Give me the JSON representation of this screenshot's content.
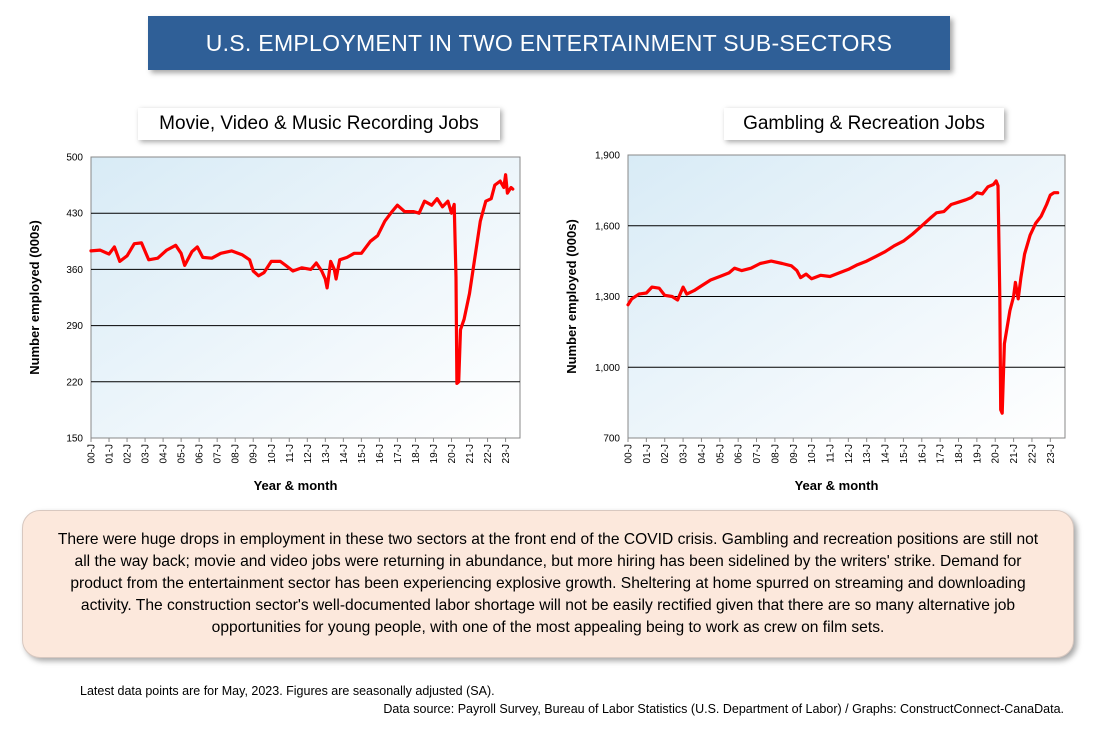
{
  "header": {
    "title": "U.S. EMPLOYMENT IN TWO ENTERTAINMENT SUB-SECTORS"
  },
  "note": {
    "text": "There were huge drops in employment in these two sectors at the front end of the COVID crisis. Gambling and recreation positions are still not all the way back; movie and video jobs were returning in abundance, but more hiring has been sidelined by the writers' strike. Demand for product from the entertainment sector has been experiencing explosive growth. Sheltering at home spurred on streaming and downloading activity. The construction sector's well-documented labor shortage will not be easily rectified given that there are so many alternative job opportunities for young people, with one of the most appealing being to work as crew on film sets."
  },
  "footer": {
    "line1": "Latest data points are for May, 2023. Figures are seasonally adjusted (SA).",
    "line2": "Data source: Payroll Survey, Bureau of Labor Statistics (U.S. Department of Labor) / Graphs: ConstructConnect-CanaData."
  },
  "colors": {
    "banner": "#2f5f97",
    "line": "#ff0000",
    "note_bg": "#fce8dc"
  },
  "chart_data": [
    {
      "type": "line",
      "title": "Movie, Video & Music Recording Jobs",
      "xlabel": "Year & month",
      "ylabel": "Number employed (000s)",
      "ylim": [
        150,
        500
      ],
      "yticks": [
        "150",
        "220",
        "290",
        "360",
        "430",
        "500"
      ],
      "ytick_values": [
        150,
        220,
        290,
        360,
        430,
        500
      ],
      "xlim": [
        2000.0,
        2023.8
      ],
      "xticks": [
        "00-J",
        "01-J",
        "02-J",
        "03-J",
        "04-J",
        "05-J",
        "06-J",
        "07-J",
        "08-J",
        "09-J",
        "10-J",
        "11-J",
        "12-J",
        "13-J",
        "14-J",
        "15-J",
        "16-J",
        "17-J",
        "18-J",
        "19-J",
        "20-J",
        "21-J",
        "22-J",
        "23-J"
      ],
      "grid": true,
      "series": [
        {
          "color": "#ff0000",
          "points": [
            [
              2000.0,
              383
            ],
            [
              2000.5,
              384
            ],
            [
              2001.0,
              379
            ],
            [
              2001.3,
              388
            ],
            [
              2001.6,
              370
            ],
            [
              2002.0,
              377
            ],
            [
              2002.4,
              392
            ],
            [
              2002.8,
              393
            ],
            [
              2003.2,
              372
            ],
            [
              2003.7,
              374
            ],
            [
              2004.2,
              384
            ],
            [
              2004.7,
              390
            ],
            [
              2005.0,
              380
            ],
            [
              2005.2,
              365
            ],
            [
              2005.6,
              382
            ],
            [
              2005.9,
              388
            ],
            [
              2006.2,
              375
            ],
            [
              2006.7,
              374
            ],
            [
              2007.2,
              380
            ],
            [
              2007.8,
              383
            ],
            [
              2008.4,
              378
            ],
            [
              2008.8,
              372
            ],
            [
              2009.0,
              358
            ],
            [
              2009.3,
              352
            ],
            [
              2009.6,
              356
            ],
            [
              2010.0,
              370
            ],
            [
              2010.5,
              370
            ],
            [
              2010.8,
              365
            ],
            [
              2011.2,
              358
            ],
            [
              2011.7,
              362
            ],
            [
              2012.2,
              360
            ],
            [
              2012.5,
              368
            ],
            [
              2012.8,
              358
            ],
            [
              2013.0,
              348
            ],
            [
              2013.1,
              337
            ],
            [
              2013.3,
              370
            ],
            [
              2013.5,
              360
            ],
            [
              2013.6,
              348
            ],
            [
              2013.8,
              372
            ],
            [
              2014.2,
              375
            ],
            [
              2014.6,
              380
            ],
            [
              2015.0,
              380
            ],
            [
              2015.5,
              395
            ],
            [
              2015.9,
              402
            ],
            [
              2016.3,
              420
            ],
            [
              2016.7,
              432
            ],
            [
              2017.0,
              440
            ],
            [
              2017.4,
              432
            ],
            [
              2017.9,
              432
            ],
            [
              2018.2,
              430
            ],
            [
              2018.5,
              445
            ],
            [
              2018.9,
              440
            ],
            [
              2019.2,
              448
            ],
            [
              2019.5,
              438
            ],
            [
              2019.8,
              445
            ],
            [
              2020.0,
              430
            ],
            [
              2020.15,
              441
            ],
            [
              2020.25,
              350
            ],
            [
              2020.3,
              218
            ],
            [
              2020.4,
              220
            ],
            [
              2020.5,
              285
            ],
            [
              2020.7,
              298
            ],
            [
              2021.0,
              330
            ],
            [
              2021.3,
              375
            ],
            [
              2021.6,
              420
            ],
            [
              2021.9,
              445
            ],
            [
              2022.2,
              448
            ],
            [
              2022.4,
              465
            ],
            [
              2022.7,
              470
            ],
            [
              2022.9,
              462
            ],
            [
              2023.0,
              478
            ],
            [
              2023.1,
              455
            ],
            [
              2023.3,
              462
            ],
            [
              2023.4,
              460
            ]
          ]
        }
      ]
    },
    {
      "type": "line",
      "title": "Gambling & Recreation Jobs",
      "xlabel": "Year & month",
      "ylabel": "Number employed (000s)",
      "ylim": [
        700,
        1900
      ],
      "yticks": [
        "700",
        "1,000",
        "1,300",
        "1,600",
        "1,900"
      ],
      "ytick_values": [
        700,
        1000,
        1300,
        1600,
        1900
      ],
      "xlim": [
        2000.0,
        2023.8
      ],
      "xticks": [
        "00-J",
        "01-J",
        "02-J",
        "03-J",
        "04-J",
        "05-J",
        "06-J",
        "07-J",
        "08-J",
        "09-J",
        "10-J",
        "11-J",
        "12-J",
        "13-J",
        "14-J",
        "15-J",
        "16-J",
        "17-J",
        "18-J",
        "19-J",
        "20-J",
        "21-J",
        "22-J",
        "23-J"
      ],
      "grid": true,
      "series": [
        {
          "color": "#ff0000",
          "points": [
            [
              2000.0,
              1265
            ],
            [
              2000.2,
              1290
            ],
            [
              2000.6,
              1310
            ],
            [
              2001.0,
              1315
            ],
            [
              2001.3,
              1340
            ],
            [
              2001.7,
              1335
            ],
            [
              2002.0,
              1305
            ],
            [
              2002.4,
              1300
            ],
            [
              2002.7,
              1285
            ],
            [
              2003.0,
              1340
            ],
            [
              2003.2,
              1310
            ],
            [
              2003.6,
              1325
            ],
            [
              2004.0,
              1345
            ],
            [
              2004.5,
              1370
            ],
            [
              2005.0,
              1385
            ],
            [
              2005.5,
              1400
            ],
            [
              2005.8,
              1420
            ],
            [
              2006.2,
              1410
            ],
            [
              2006.7,
              1420
            ],
            [
              2007.2,
              1440
            ],
            [
              2007.8,
              1450
            ],
            [
              2008.4,
              1440
            ],
            [
              2008.9,
              1430
            ],
            [
              2009.2,
              1410
            ],
            [
              2009.4,
              1380
            ],
            [
              2009.7,
              1395
            ],
            [
              2010.0,
              1375
            ],
            [
              2010.5,
              1390
            ],
            [
              2011.0,
              1385
            ],
            [
              2011.5,
              1400
            ],
            [
              2012.0,
              1415
            ],
            [
              2012.5,
              1435
            ],
            [
              2013.0,
              1450
            ],
            [
              2013.5,
              1470
            ],
            [
              2014.0,
              1490
            ],
            [
              2014.5,
              1515
            ],
            [
              2015.0,
              1535
            ],
            [
              2015.5,
              1565
            ],
            [
              2016.0,
              1600
            ],
            [
              2016.5,
              1635
            ],
            [
              2016.8,
              1655
            ],
            [
              2017.2,
              1660
            ],
            [
              2017.6,
              1690
            ],
            [
              2018.0,
              1700
            ],
            [
              2018.4,
              1710
            ],
            [
              2018.7,
              1720
            ],
            [
              2019.0,
              1740
            ],
            [
              2019.3,
              1735
            ],
            [
              2019.6,
              1765
            ],
            [
              2019.9,
              1775
            ],
            [
              2020.05,
              1790
            ],
            [
              2020.15,
              1770
            ],
            [
              2020.25,
              1300
            ],
            [
              2020.3,
              820
            ],
            [
              2020.38,
              805
            ],
            [
              2020.5,
              1100
            ],
            [
              2020.8,
              1240
            ],
            [
              2021.0,
              1300
            ],
            [
              2021.1,
              1360
            ],
            [
              2021.25,
              1290
            ],
            [
              2021.4,
              1380
            ],
            [
              2021.6,
              1480
            ],
            [
              2021.9,
              1560
            ],
            [
              2022.2,
              1610
            ],
            [
              2022.5,
              1640
            ],
            [
              2022.8,
              1690
            ],
            [
              2023.0,
              1730
            ],
            [
              2023.2,
              1740
            ],
            [
              2023.4,
              1740
            ]
          ]
        }
      ]
    }
  ]
}
